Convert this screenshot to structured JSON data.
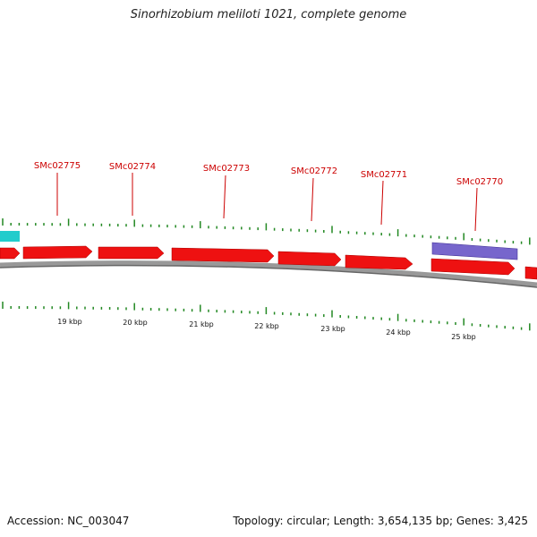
{
  "title": "Sinorhizobium meliloti 1021, complete genome",
  "accession": "Accession: NC_003047",
  "summary": "Topology: circular; Length: 3,654,135 bp; Genes: 3,425",
  "colors": {
    "forward_gene": "#ee1111",
    "cyan_feature": "#22cccc",
    "purple_feature": "#7766cc",
    "backbone": "#888888",
    "tick": "#228822",
    "gene_label": "#cc0000"
  },
  "gene_labels": [
    "SMc02775",
    "SMc02774",
    "SMc02773",
    "SMc02772",
    "SMc02771",
    "SMc02770"
  ],
  "kbp_labels": [
    "19 kbp",
    "20 kbp",
    "21 kbp",
    "22 kbp",
    "23 kbp",
    "24 kbp",
    "25 kbp"
  ]
}
